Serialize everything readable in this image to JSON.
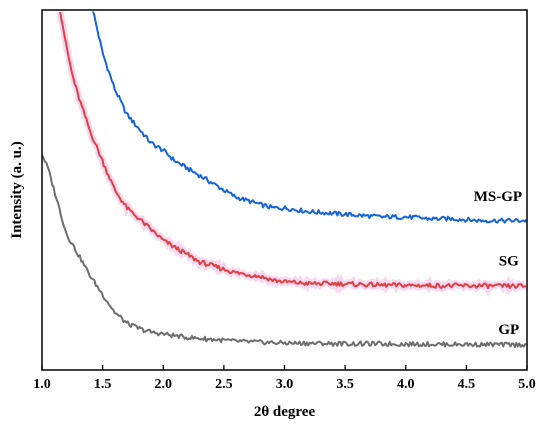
{
  "chart_data": {
    "type": "line",
    "title": "",
    "xlabel": "2θ degree",
    "ylabel": "Intensity (a. u.)",
    "xlim": [
      1.0,
      5.0
    ],
    "ylim": [
      0,
      100
    ],
    "y_tick_labels_shown": false,
    "grid": false,
    "x_ticks": [
      1.0,
      1.5,
      2.0,
      2.5,
      3.0,
      3.5,
      4.0,
      4.5,
      5.0
    ],
    "x_tick_labels": [
      "1.0",
      "1.5",
      "2.0",
      "2.5",
      "3.0",
      "3.5",
      "4.0",
      "4.5",
      "5.0"
    ],
    "series": [
      {
        "name": "MS-GP",
        "color": "#1565d8",
        "x": [
          1.42,
          1.5,
          1.6,
          1.7,
          1.8,
          1.9,
          2.0,
          2.1,
          2.2,
          2.3,
          2.4,
          2.5,
          2.6,
          2.7,
          2.8,
          2.9,
          3.0,
          3.2,
          3.4,
          3.6,
          3.8,
          4.0,
          4.2,
          4.4,
          4.6,
          4.8,
          5.0
        ],
        "values": [
          100,
          88,
          78,
          71,
          67,
          63,
          61,
          58,
          56,
          54,
          52,
          50,
          48,
          47,
          46,
          45,
          45,
          44,
          43.5,
          43,
          42.5,
          42.5,
          42,
          42,
          41.5,
          41.5,
          41.5
        ]
      },
      {
        "name": "SG",
        "color": "#e04040",
        "highlight_color": "#f4b8e8",
        "x": [
          1.15,
          1.2,
          1.25,
          1.3,
          1.4,
          1.5,
          1.6,
          1.7,
          1.8,
          1.9,
          2.0,
          2.1,
          2.2,
          2.3,
          2.4,
          2.5,
          2.6,
          2.7,
          2.8,
          2.9,
          3.0,
          3.2,
          3.4,
          3.6,
          3.8,
          4.0,
          4.2,
          4.4,
          4.6,
          4.8,
          5.0
        ],
        "values": [
          100,
          90,
          82,
          76,
          66,
          58,
          50,
          45,
          42,
          39,
          36,
          34,
          32,
          30,
          29,
          28,
          27,
          26.5,
          26,
          25,
          24.5,
          24,
          24,
          23.8,
          23.6,
          23.5,
          23.5,
          23.4,
          23.4,
          23.3,
          23.3
        ]
      },
      {
        "name": "GP",
        "color": "#6e6e6e",
        "x": [
          1.0,
          1.05,
          1.1,
          1.15,
          1.2,
          1.3,
          1.4,
          1.5,
          1.6,
          1.7,
          1.8,
          1.9,
          2.0,
          2.2,
          2.4,
          2.6,
          2.8,
          3.0,
          3.5,
          4.0,
          4.5,
          5.0
        ],
        "values": [
          60,
          56,
          50,
          44,
          38,
          32,
          26,
          21,
          16,
          13,
          11.5,
          10.5,
          10,
          9,
          8.5,
          8,
          7.7,
          7.5,
          7.3,
          7.2,
          7.1,
          7.0
        ]
      }
    ],
    "series_labels": [
      {
        "text": "MS-GP",
        "x": 4.76,
        "y": 47
      },
      {
        "text": "SG",
        "x": 4.85,
        "y": 29
      },
      {
        "text": "GP",
        "x": 4.85,
        "y": 10
      }
    ]
  }
}
